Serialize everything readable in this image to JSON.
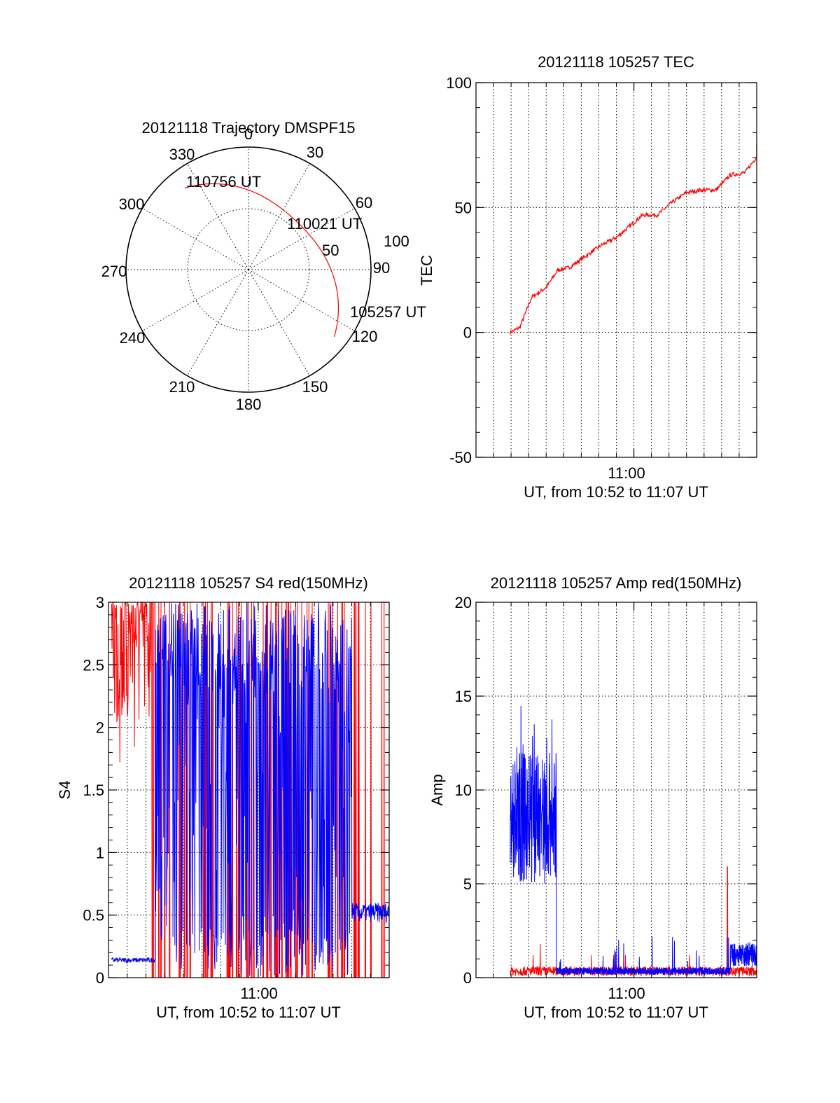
{
  "colors": {
    "red": "#ff0000",
    "blue": "#0000ff",
    "axis": "#000000"
  },
  "chart_data": [
    {
      "id": "trajectory",
      "type": "polar",
      "title": "20121118 Trajectory DMSPF15",
      "angle_labels": [
        "0",
        "30",
        "60",
        "90",
        "120",
        "150",
        "180",
        "210",
        "240",
        "270",
        "300",
        "330"
      ],
      "radial_labels": [
        "50",
        "100"
      ],
      "annotations": [
        "110756 UT",
        "110021 UT",
        "105257 UT"
      ],
      "track": {
        "color": "#ff0000",
        "start": {
          "az": 128,
          "elev": 10
        },
        "end": {
          "az": 322,
          "elev": 14
        }
      }
    },
    {
      "id": "tec",
      "type": "line",
      "title": "20121118 105257 TEC",
      "xlabel": "UT, from 10:52 to 11:07 UT",
      "ylabel": "TEC",
      "xlim": [
        "10:51",
        "11:07"
      ],
      "ylim": [
        -50,
        100
      ],
      "yticks": [
        "-50",
        "0",
        "50",
        "100"
      ],
      "xtick_labels": [
        "11:00"
      ],
      "grid": true,
      "series": [
        {
          "color": "#ff0000",
          "x": [
            "10:52:57",
            "10:53:30",
            "10:54:10",
            "10:55:00",
            "10:55:40",
            "10:56:20",
            "10:57:20",
            "10:58:10",
            "10:59:00",
            "10:59:50",
            "11:00:30",
            "11:01:20",
            "11:02:10",
            "11:03:00",
            "11:03:50",
            "11:04:40",
            "11:05:30",
            "11:06:20",
            "11:07:30"
          ],
          "y": [
            0,
            2,
            14,
            18,
            25,
            26,
            31,
            35,
            38,
            43,
            47,
            47,
            52,
            56,
            57,
            57,
            63,
            64,
            75
          ]
        }
      ]
    },
    {
      "id": "s4",
      "type": "line",
      "title": "20121118 105257 S4 red(150MHz)",
      "xlabel": "UT, from 10:52 to 11:07 UT",
      "ylabel": "S4",
      "xlim": [
        "10:52",
        "11:07"
      ],
      "ylim": [
        0,
        3
      ],
      "yticks": [
        "0",
        "0.5",
        "1",
        "1.5",
        "2",
        "2.5",
        "3"
      ],
      "xtick_labels": [
        "11:00"
      ],
      "grid": true,
      "series": [
        {
          "color": "#ff0000",
          "description": "saturated/noisy 10:52:10-10:54:30 (~1.6-3), spikes to 3 after"
        },
        {
          "color": "#0000ff",
          "description": "~0.14 from 10:52:10 to 10:54:30, noisy 0-3 until 11:05, ~0.52 after"
        }
      ]
    },
    {
      "id": "amp",
      "type": "line",
      "title": "20121118 105257 Amp red(150MHz)",
      "xlabel": "UT, from 10:52 to 11:07 UT",
      "ylabel": "Amp",
      "xlim": [
        "10:51",
        "11:07"
      ],
      "ylim": [
        0,
        20
      ],
      "yticks": [
        "0",
        "5",
        "10",
        "15",
        "20"
      ],
      "xtick_labels": [
        "11:00"
      ],
      "grid": true,
      "series": [
        {
          "color": "#ff0000",
          "description": "~0.3 baseline, spikes 1.8 at 10:54, 5.9 at 11:06"
        },
        {
          "color": "#0000ff",
          "description": "~8.5 band (5-13) from 10:52:57 to 10:55:35, then ~0.2-0.6 with bursts, ~1.2 after 11:05:30"
        }
      ]
    }
  ]
}
